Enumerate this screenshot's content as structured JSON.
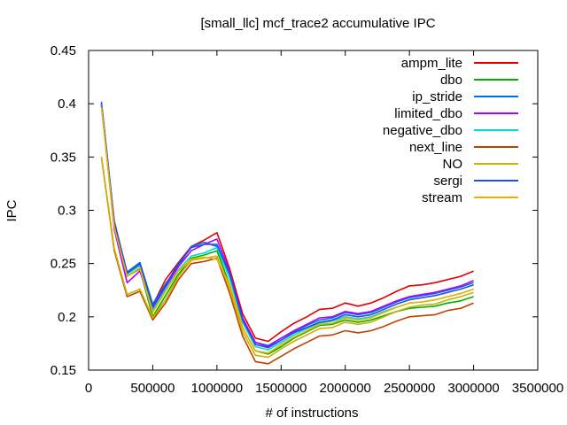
{
  "chart_data": {
    "type": "line",
    "title": "[small_llc] mcf_trace2 accumulative IPC",
    "xlabel": "# of instructions",
    "ylabel": "IPC",
    "xlim": [
      0,
      3500000
    ],
    "ylim": [
      0.15,
      0.45
    ],
    "xticks": [
      0,
      500000,
      1000000,
      1500000,
      2000000,
      2500000,
      3000000,
      3500000
    ],
    "yticks": [
      0.15,
      0.2,
      0.25,
      0.3,
      0.35,
      0.4,
      0.45
    ],
    "ytick_labels": [
      "0.15",
      "0.2",
      "0.25",
      "0.3",
      "0.35",
      "0.4",
      "0.45"
    ],
    "grid": false,
    "legend_position": "top-right",
    "x": [
      100000,
      200000,
      300000,
      400000,
      500000,
      600000,
      700000,
      800000,
      900000,
      1000000,
      1100000,
      1200000,
      1300000,
      1400000,
      1500000,
      1600000,
      1700000,
      1800000,
      1900000,
      2000000,
      2100000,
      2200000,
      2300000,
      2400000,
      2500000,
      2600000,
      2700000,
      2800000,
      2900000,
      3000000
    ],
    "series": [
      {
        "name": "ampm_lite",
        "color": "#e00000",
        "values": [
          0.4,
          0.29,
          0.24,
          0.249,
          0.211,
          0.235,
          0.251,
          0.266,
          0.272,
          0.279,
          0.245,
          0.203,
          0.18,
          0.177,
          0.186,
          0.194,
          0.2,
          0.207,
          0.208,
          0.213,
          0.21,
          0.213,
          0.218,
          0.224,
          0.229,
          0.23,
          0.232,
          0.235,
          0.238,
          0.243
        ]
      },
      {
        "name": "dbo",
        "color": "#00b000",
        "values": [
          0.4,
          0.285,
          0.238,
          0.245,
          0.2,
          0.22,
          0.24,
          0.255,
          0.258,
          0.262,
          0.23,
          0.19,
          0.168,
          0.165,
          0.172,
          0.18,
          0.186,
          0.192,
          0.193,
          0.197,
          0.195,
          0.197,
          0.201,
          0.205,
          0.208,
          0.209,
          0.21,
          0.213,
          0.215,
          0.219
        ]
      },
      {
        "name": "ip_stride",
        "color": "#0070e0",
        "values": [
          0.402,
          0.289,
          0.242,
          0.251,
          0.212,
          0.231,
          0.248,
          0.266,
          0.27,
          0.266,
          0.24,
          0.198,
          0.176,
          0.173,
          0.18,
          0.186,
          0.192,
          0.197,
          0.199,
          0.204,
          0.202,
          0.204,
          0.209,
          0.214,
          0.218,
          0.22,
          0.222,
          0.225,
          0.228,
          0.232
        ]
      },
      {
        "name": "limited_dbo",
        "color": "#b000ff",
        "values": [
          0.4,
          0.282,
          0.232,
          0.243,
          0.208,
          0.228,
          0.247,
          0.262,
          0.268,
          0.273,
          0.242,
          0.199,
          0.176,
          0.172,
          0.18,
          0.187,
          0.193,
          0.199,
          0.2,
          0.205,
          0.203,
          0.205,
          0.21,
          0.215,
          0.219,
          0.221,
          0.223,
          0.226,
          0.229,
          0.234
        ]
      },
      {
        "name": "negative_dbo",
        "color": "#00d8d8",
        "values": [
          0.399,
          0.286,
          0.24,
          0.248,
          0.206,
          0.226,
          0.244,
          0.257,
          0.26,
          0.265,
          0.236,
          0.195,
          0.172,
          0.169,
          0.176,
          0.183,
          0.189,
          0.194,
          0.196,
          0.2,
          0.198,
          0.2,
          0.205,
          0.209,
          0.213,
          0.214,
          0.216,
          0.219,
          0.222,
          0.226
        ]
      },
      {
        "name": "next_line",
        "color": "#c04000",
        "values": [
          0.35,
          0.262,
          0.219,
          0.224,
          0.197,
          0.213,
          0.235,
          0.25,
          0.252,
          0.255,
          0.222,
          0.182,
          0.158,
          0.156,
          0.163,
          0.17,
          0.176,
          0.182,
          0.183,
          0.187,
          0.185,
          0.187,
          0.191,
          0.196,
          0.2,
          0.201,
          0.202,
          0.206,
          0.208,
          0.213
        ]
      },
      {
        "name": "NO",
        "color": "#c8b400",
        "values": [
          0.35,
          0.264,
          0.221,
          0.226,
          0.199,
          0.216,
          0.238,
          0.253,
          0.255,
          0.257,
          0.226,
          0.186,
          0.164,
          0.162,
          0.17,
          0.177,
          0.183,
          0.189,
          0.19,
          0.195,
          0.193,
          0.195,
          0.2,
          0.205,
          0.209,
          0.211,
          0.212,
          0.216,
          0.219,
          0.223
        ]
      },
      {
        "name": "sergi",
        "color": "#2050e0",
        "values": [
          0.398,
          0.288,
          0.241,
          0.25,
          0.21,
          0.23,
          0.25,
          0.265,
          0.268,
          0.268,
          0.24,
          0.197,
          0.174,
          0.171,
          0.178,
          0.185,
          0.19,
          0.195,
          0.197,
          0.202,
          0.2,
          0.202,
          0.207,
          0.212,
          0.216,
          0.218,
          0.22,
          0.223,
          0.226,
          0.23
        ]
      },
      {
        "name": "stream",
        "color": "#f0b000",
        "values": [
          0.397,
          0.284,
          0.238,
          0.246,
          0.204,
          0.224,
          0.243,
          0.254,
          0.256,
          0.254,
          0.23,
          0.19,
          0.168,
          0.166,
          0.174,
          0.181,
          0.187,
          0.193,
          0.194,
          0.199,
          0.197,
          0.199,
          0.204,
          0.209,
          0.213,
          0.214,
          0.216,
          0.219,
          0.222,
          0.226
        ]
      }
    ]
  }
}
